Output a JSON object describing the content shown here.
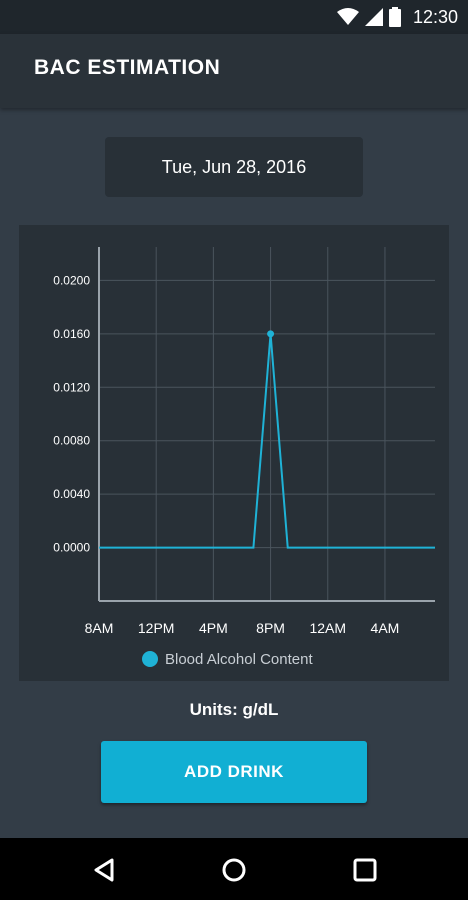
{
  "status_bar": {
    "time": "12:30",
    "icons": [
      "wifi-icon",
      "signal-icon",
      "battery-icon"
    ]
  },
  "app_bar": {
    "title": "BAC ESTIMATION"
  },
  "date_selector": {
    "label": "Tue, Jun 28, 2016"
  },
  "chart_data": {
    "type": "line",
    "title": "",
    "xlabel": "",
    "ylabel": "",
    "x_tick_labels": [
      "8AM",
      "12PM",
      "4PM",
      "8PM",
      "12AM",
      "4AM"
    ],
    "y_tick_labels": [
      "0.0000",
      "0.0040",
      "0.0080",
      "0.0120",
      "0.0160",
      "0.0200"
    ],
    "y_ticks": [
      0.0,
      0.004,
      0.008,
      0.012,
      0.016,
      0.02
    ],
    "xlim": [
      8,
      31.5
    ],
    "ylim": [
      -0.004,
      0.0225
    ],
    "grid": true,
    "legend_position": "bottom",
    "series": [
      {
        "name": "Blood Alcohol Content",
        "color": "#1fb2d6",
        "x": [
          8,
          18.8,
          20,
          21.2,
          31.5
        ],
        "y": [
          0.0,
          0.0,
          0.016,
          0.0,
          0.0
        ],
        "marked_points": [
          [
            20,
            0.016
          ]
        ]
      }
    ]
  },
  "units_label": "Units: g/dL",
  "add_drink_button": {
    "label": "ADD DRINK",
    "color": "#11afd3"
  },
  "nav_bar": {
    "icons": [
      "back-icon",
      "home-icon",
      "recents-icon"
    ]
  }
}
